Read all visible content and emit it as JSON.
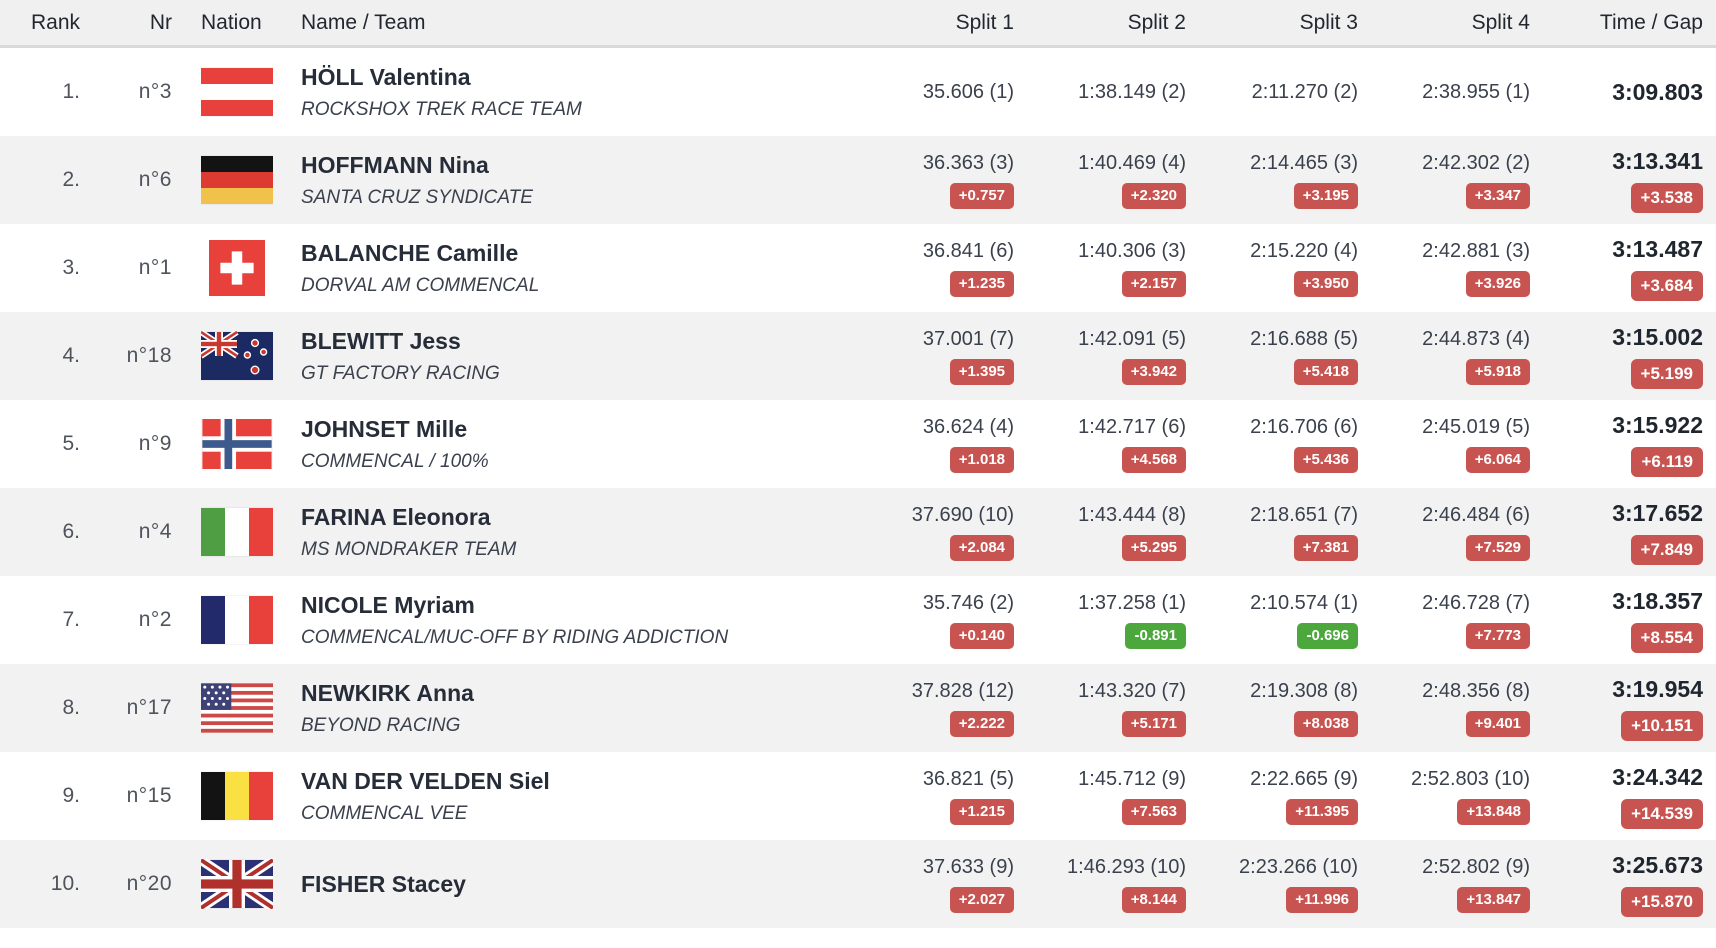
{
  "header": {
    "rank": "Rank",
    "nr": "Nr",
    "nation": "Nation",
    "name_team": "Name / Team",
    "split1": "Split 1",
    "split2": "Split 2",
    "split3": "Split 3",
    "split4": "Split 4",
    "time_gap": "Time / Gap"
  },
  "colors": {
    "badge_behind": "#c75450",
    "badge_ahead": "#4ca83c",
    "row_alt": "#f2f2f2",
    "header_bg": "#f0f0f0",
    "text_dark": "#262d38"
  },
  "rows": [
    {
      "rank": "1.",
      "nr": "n°3",
      "nation": "Austria",
      "nation_code": "aut",
      "name": "HÖLL Valentina",
      "team": "ROCKSHOX TREK RACE TEAM",
      "splits": [
        {
          "time": "35.606 (1)",
          "gap": ""
        },
        {
          "time": "1:38.149 (2)",
          "gap": ""
        },
        {
          "time": "2:11.270 (2)",
          "gap": ""
        },
        {
          "time": "2:38.955 (1)",
          "gap": ""
        }
      ],
      "total": {
        "time": "3:09.803",
        "gap": ""
      }
    },
    {
      "rank": "2.",
      "nr": "n°6",
      "nation": "Germany",
      "nation_code": "ger",
      "name": "HOFFMANN Nina",
      "team": "SANTA CRUZ SYNDICATE",
      "splits": [
        {
          "time": "36.363 (3)",
          "gap": "+0.757"
        },
        {
          "time": "1:40.469 (4)",
          "gap": "+2.320"
        },
        {
          "time": "2:14.465 (3)",
          "gap": "+3.195"
        },
        {
          "time": "2:42.302 (2)",
          "gap": "+3.347"
        }
      ],
      "total": {
        "time": "3:13.341",
        "gap": "+3.538"
      }
    },
    {
      "rank": "3.",
      "nr": "n°1",
      "nation": "Switzerland",
      "nation_code": "sui",
      "name": "BALANCHE Camille",
      "team": "DORVAL AM COMMENCAL",
      "splits": [
        {
          "time": "36.841 (6)",
          "gap": "+1.235"
        },
        {
          "time": "1:40.306 (3)",
          "gap": "+2.157"
        },
        {
          "time": "2:15.220 (4)",
          "gap": "+3.950"
        },
        {
          "time": "2:42.881 (3)",
          "gap": "+3.926"
        }
      ],
      "total": {
        "time": "3:13.487",
        "gap": "+3.684"
      }
    },
    {
      "rank": "4.",
      "nr": "n°18",
      "nation": "New Zealand",
      "nation_code": "nzl",
      "name": "BLEWITT Jess",
      "team": "GT FACTORY RACING",
      "splits": [
        {
          "time": "37.001 (7)",
          "gap": "+1.395"
        },
        {
          "time": "1:42.091 (5)",
          "gap": "+3.942"
        },
        {
          "time": "2:16.688 (5)",
          "gap": "+5.418"
        },
        {
          "time": "2:44.873 (4)",
          "gap": "+5.918"
        }
      ],
      "total": {
        "time": "3:15.002",
        "gap": "+5.199"
      }
    },
    {
      "rank": "5.",
      "nr": "n°9",
      "nation": "Norway",
      "nation_code": "nor",
      "name": "JOHNSET Mille",
      "team": "COMMENCAL / 100%",
      "splits": [
        {
          "time": "36.624 (4)",
          "gap": "+1.018"
        },
        {
          "time": "1:42.717 (6)",
          "gap": "+4.568"
        },
        {
          "time": "2:16.706 (6)",
          "gap": "+5.436"
        },
        {
          "time": "2:45.019 (5)",
          "gap": "+6.064"
        }
      ],
      "total": {
        "time": "3:15.922",
        "gap": "+6.119"
      }
    },
    {
      "rank": "6.",
      "nr": "n°4",
      "nation": "Italy",
      "nation_code": "ita",
      "name": "FARINA Eleonora",
      "team": "MS MONDRAKER TEAM",
      "splits": [
        {
          "time": "37.690 (10)",
          "gap": "+2.084"
        },
        {
          "time": "1:43.444 (8)",
          "gap": "+5.295"
        },
        {
          "time": "2:18.651 (7)",
          "gap": "+7.381"
        },
        {
          "time": "2:46.484 (6)",
          "gap": "+7.529"
        }
      ],
      "total": {
        "time": "3:17.652",
        "gap": "+7.849"
      }
    },
    {
      "rank": "7.",
      "nr": "n°2",
      "nation": "France",
      "nation_code": "fra",
      "name": "NICOLE Myriam",
      "team": "COMMENCAL/MUC-OFF BY RIDING ADDICTION",
      "splits": [
        {
          "time": "35.746 (2)",
          "gap": "+0.140"
        },
        {
          "time": "1:37.258 (1)",
          "gap": "-0.891"
        },
        {
          "time": "2:10.574 (1)",
          "gap": "-0.696"
        },
        {
          "time": "2:46.728 (7)",
          "gap": "+7.773"
        }
      ],
      "total": {
        "time": "3:18.357",
        "gap": "+8.554"
      }
    },
    {
      "rank": "8.",
      "nr": "n°17",
      "nation": "United States",
      "nation_code": "usa",
      "name": "NEWKIRK Anna",
      "team": "BEYOND RACING",
      "splits": [
        {
          "time": "37.828 (12)",
          "gap": "+2.222"
        },
        {
          "time": "1:43.320 (7)",
          "gap": "+5.171"
        },
        {
          "time": "2:19.308 (8)",
          "gap": "+8.038"
        },
        {
          "time": "2:48.356 (8)",
          "gap": "+9.401"
        }
      ],
      "total": {
        "time": "3:19.954",
        "gap": "+10.151"
      }
    },
    {
      "rank": "9.",
      "nr": "n°15",
      "nation": "Belgium",
      "nation_code": "bel",
      "name": "VAN DER VELDEN Siel",
      "team": "COMMENCAL VEE",
      "splits": [
        {
          "time": "36.821 (5)",
          "gap": "+1.215"
        },
        {
          "time": "1:45.712 (9)",
          "gap": "+7.563"
        },
        {
          "time": "2:22.665 (9)",
          "gap": "+11.395"
        },
        {
          "time": "2:52.803 (10)",
          "gap": "+13.848"
        }
      ],
      "total": {
        "time": "3:24.342",
        "gap": "+14.539"
      }
    },
    {
      "rank": "10.",
      "nr": "n°20",
      "nation": "Great Britain",
      "nation_code": "gbr",
      "name": "FISHER Stacey",
      "team": "",
      "splits": [
        {
          "time": "37.633 (9)",
          "gap": "+2.027"
        },
        {
          "time": "1:46.293 (10)",
          "gap": "+8.144"
        },
        {
          "time": "2:23.266 (10)",
          "gap": "+11.996"
        },
        {
          "time": "2:52.802 (9)",
          "gap": "+13.847"
        }
      ],
      "total": {
        "time": "3:25.673",
        "gap": "+15.870"
      }
    }
  ]
}
